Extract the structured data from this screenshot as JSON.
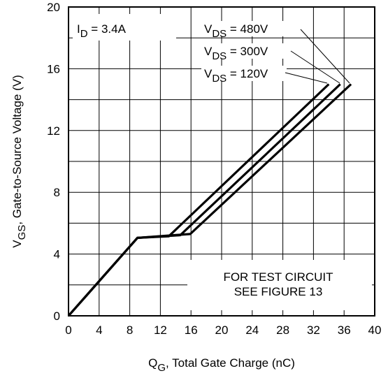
{
  "chart_data": {
    "type": "line",
    "xlabel": {
      "main": "Q",
      "sub": "G",
      "rest": ", Total Gate Charge (nC)"
    },
    "ylabel": {
      "main": "V",
      "sub": "GS",
      "rest": ", Gate-to-Source Voltage (V)"
    },
    "xlim": [
      0,
      40
    ],
    "ylim": [
      0,
      20
    ],
    "xticks": [
      0,
      4,
      8,
      12,
      16,
      20,
      24,
      28,
      32,
      36,
      40
    ],
    "yticks": [
      0,
      4,
      8,
      12,
      16,
      20
    ],
    "grid": true,
    "series": [
      {
        "name": "VDS = 480V",
        "label_main": "V",
        "label_sub": "DS",
        "label_rest": " = 480V",
        "points": [
          [
            0,
            0
          ],
          [
            9,
            5.05
          ],
          [
            15.9,
            5.3
          ],
          [
            36.9,
            15
          ]
        ]
      },
      {
        "name": "VDS = 300V",
        "label_main": "V",
        "label_sub": "DS",
        "label_rest": " = 300V",
        "points": [
          [
            0,
            0
          ],
          [
            9,
            5.05
          ],
          [
            14.6,
            5.22
          ],
          [
            35.5,
            15
          ]
        ]
      },
      {
        "name": "VDS = 120V",
        "label_main": "V",
        "label_sub": "DS",
        "label_rest": " = 120V",
        "points": [
          [
            0,
            0
          ],
          [
            9,
            5.05
          ],
          [
            13.1,
            5.15
          ],
          [
            34,
            15
          ]
        ]
      }
    ],
    "annotations": {
      "current": {
        "main": "I",
        "sub": "D",
        "rest": " = 3.4A"
      },
      "note_line1": "FOR TEST CIRCUIT",
      "note_line2": "SEE FIGURE 13"
    }
  }
}
